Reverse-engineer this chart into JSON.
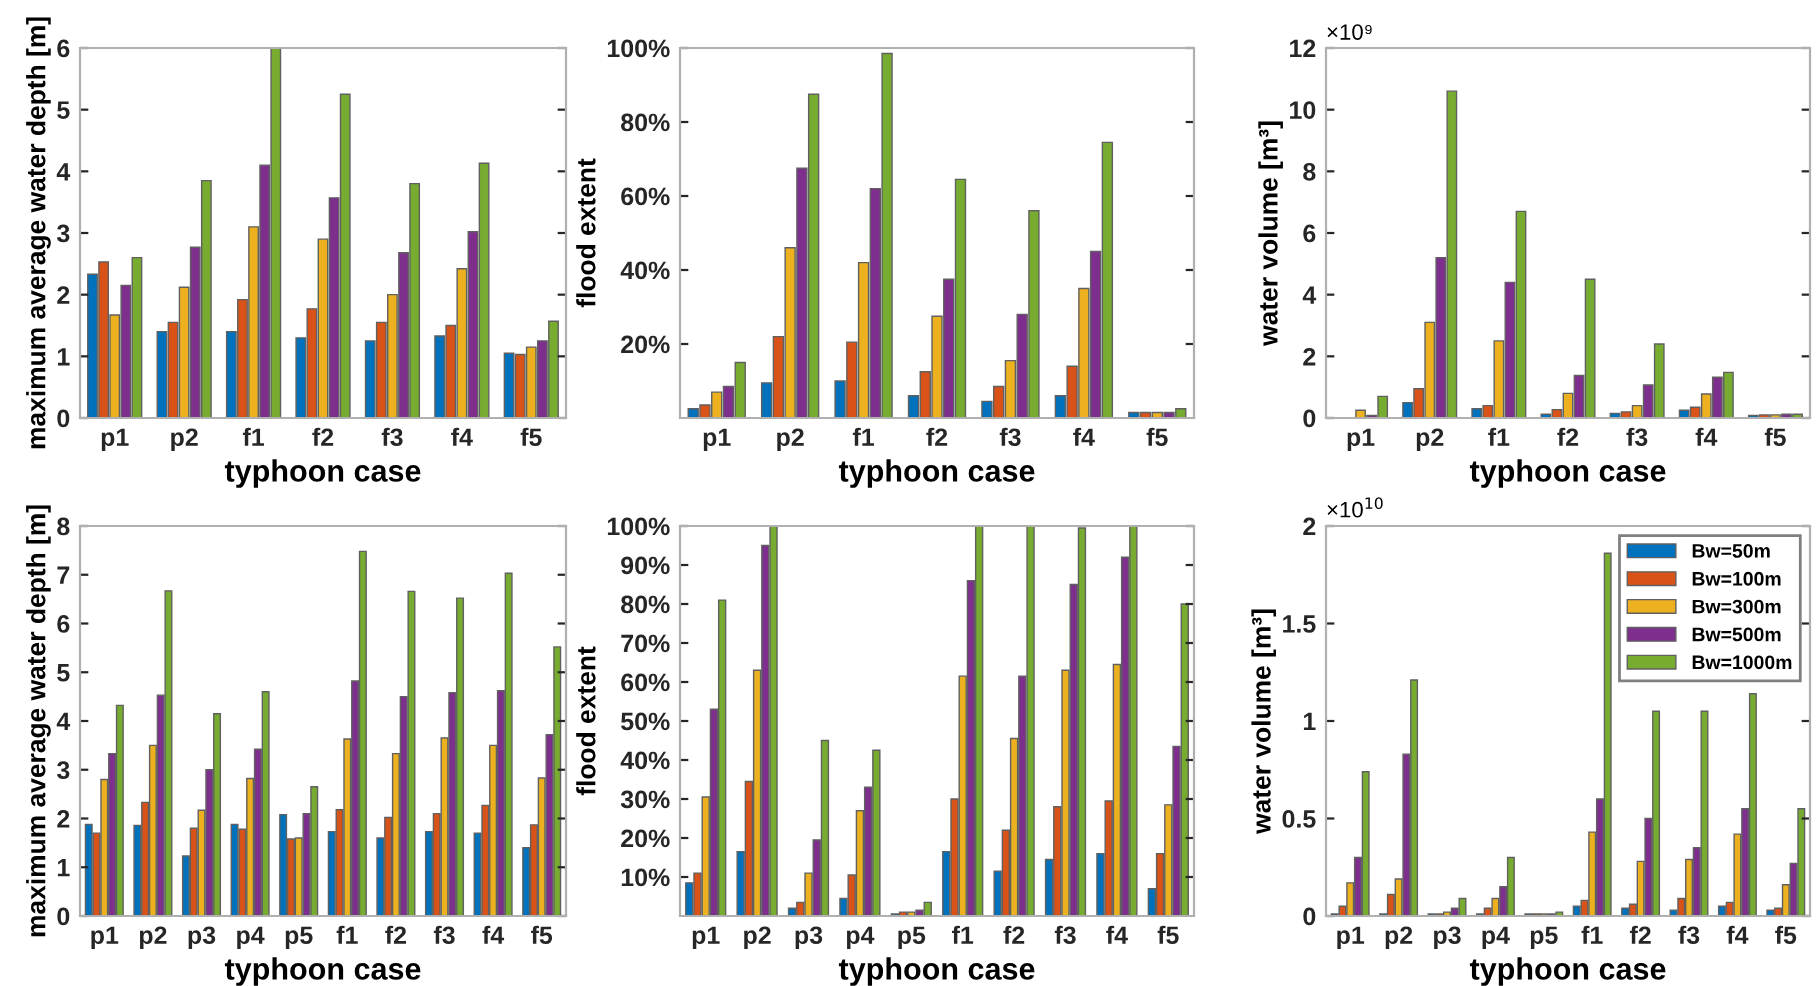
{
  "chart_data": [
    {
      "type": "bar",
      "xlabel": "typhoon case",
      "ylabel": "maximum average water depth [m]",
      "categories": [
        "p1",
        "p2",
        "f1",
        "f2",
        "f3",
        "f4",
        "f5"
      ],
      "ylim": [
        0,
        6
      ],
      "yticks": [
        0,
        1,
        2,
        3,
        4,
        5,
        6
      ],
      "grid": false,
      "legend": false,
      "series": [
        {
          "color": "#0072bd",
          "values": [
            2.33,
            1.4,
            1.4,
            1.3,
            1.25,
            1.33,
            1.05
          ]
        },
        {
          "color": "#d95319",
          "values": [
            2.53,
            1.55,
            1.92,
            1.77,
            1.55,
            1.5,
            1.03
          ]
        },
        {
          "color": "#edb120",
          "values": [
            1.67,
            2.12,
            3.1,
            2.9,
            2.0,
            2.42,
            1.15
          ]
        },
        {
          "color": "#7e2f8e",
          "values": [
            2.15,
            2.77,
            4.1,
            3.57,
            2.68,
            3.02,
            1.25
          ]
        },
        {
          "color": "#77ac30",
          "values": [
            2.6,
            3.85,
            6.0,
            5.25,
            3.8,
            4.13,
            1.57
          ]
        }
      ]
    },
    {
      "type": "bar",
      "xlabel": "typhoon case",
      "ylabel": "flood extent",
      "categories": [
        "p1",
        "p2",
        "f1",
        "f2",
        "f3",
        "f4",
        "f5"
      ],
      "ylim": [
        0,
        100
      ],
      "yticks": [
        {
          "value": 20,
          "label": "20%"
        },
        {
          "value": 40,
          "label": "40%"
        },
        {
          "value": 60,
          "label": "60%"
        },
        {
          "value": 80,
          "label": "80%"
        },
        {
          "value": 100,
          "label": "100%"
        }
      ],
      "grid": false,
      "legend": false,
      "series": [
        {
          "color": "#0072bd",
          "values": [
            2.5,
            9.5,
            10,
            6,
            4.5,
            6,
            1.5
          ]
        },
        {
          "color": "#d95319",
          "values": [
            3.5,
            22,
            20.5,
            12.5,
            8.5,
            14,
            1.5
          ]
        },
        {
          "color": "#edb120",
          "values": [
            7,
            46,
            42,
            27.5,
            15.5,
            35,
            1.5
          ]
        },
        {
          "color": "#7e2f8e",
          "values": [
            8.5,
            67.5,
            62,
            37.5,
            28,
            45,
            1.5
          ]
        },
        {
          "color": "#77ac30",
          "values": [
            15,
            87.5,
            98.5,
            64.5,
            56,
            74.5,
            2.5
          ]
        }
      ]
    },
    {
      "type": "bar",
      "xlabel": "typhoon case",
      "ylabel": "water volume [m³]",
      "annotations": [
        "×10⁹"
      ],
      "categories": [
        "p1",
        "p2",
        "f1",
        "f2",
        "f3",
        "f4",
        "f5"
      ],
      "ylim": [
        0,
        12
      ],
      "yticks": [
        0,
        2,
        4,
        6,
        8,
        10,
        12
      ],
      "grid": false,
      "legend": false,
      "series": [
        {
          "color": "#0072bd",
          "values": [
            null,
            0.5,
            0.3,
            0.12,
            0.15,
            0.25,
            0.08
          ]
        },
        {
          "color": "#d95319",
          "values": [
            null,
            0.95,
            0.4,
            0.27,
            0.2,
            0.35,
            0.1
          ]
        },
        {
          "color": "#edb120",
          "values": [
            0.25,
            3.1,
            2.5,
            0.8,
            0.4,
            0.78,
            0.1
          ]
        },
        {
          "color": "#7e2f8e",
          "values": [
            0.08,
            5.2,
            4.4,
            1.38,
            1.07,
            1.32,
            0.12
          ]
        },
        {
          "color": "#77ac30",
          "values": [
            0.7,
            10.6,
            6.7,
            4.5,
            2.4,
            1.48,
            0.12
          ]
        }
      ]
    },
    {
      "type": "bar",
      "xlabel": "typhoon case",
      "ylabel": "maximum average water depth [m]",
      "categories": [
        "p1",
        "p2",
        "p3",
        "p4",
        "p5",
        "f1",
        "f2",
        "f3",
        "f4",
        "f5"
      ],
      "ylim": [
        0,
        8
      ],
      "yticks": [
        0,
        1,
        2,
        3,
        4,
        5,
        6,
        7,
        8
      ],
      "grid": false,
      "legend": false,
      "series": [
        {
          "color": "#0072bd",
          "values": [
            1.88,
            1.86,
            1.23,
            1.88,
            2.08,
            1.73,
            1.6,
            1.73,
            1.7,
            1.4
          ]
        },
        {
          "color": "#d95319",
          "values": [
            1.7,
            2.33,
            1.8,
            1.78,
            1.58,
            2.18,
            2.02,
            2.1,
            2.27,
            1.87
          ]
        },
        {
          "color": "#edb120",
          "values": [
            2.8,
            3.5,
            2.17,
            2.82,
            1.6,
            3.63,
            3.33,
            3.65,
            3.5,
            2.83
          ]
        },
        {
          "color": "#7e2f8e",
          "values": [
            3.33,
            4.53,
            3.0,
            3.42,
            2.1,
            4.82,
            4.5,
            4.58,
            4.62,
            3.72
          ]
        },
        {
          "color": "#77ac30",
          "values": [
            4.32,
            6.67,
            4.15,
            4.6,
            2.65,
            7.48,
            6.66,
            6.52,
            7.03,
            5.52
          ]
        }
      ]
    },
    {
      "type": "bar",
      "xlabel": "typhoon case",
      "ylabel": "flood extent",
      "categories": [
        "p1",
        "p2",
        "p3",
        "p4",
        "p5",
        "f1",
        "f2",
        "f3",
        "f4",
        "f5"
      ],
      "ylim": [
        0,
        100
      ],
      "yticks": [
        {
          "value": 10,
          "label": "10%"
        },
        {
          "value": 20,
          "label": "20%"
        },
        {
          "value": 30,
          "label": "30%"
        },
        {
          "value": 40,
          "label": "40%"
        },
        {
          "value": 50,
          "label": "50%"
        },
        {
          "value": 60,
          "label": "60%"
        },
        {
          "value": 70,
          "label": "70%"
        },
        {
          "value": 80,
          "label": "80%"
        },
        {
          "value": 90,
          "label": "90%"
        },
        {
          "value": 100,
          "label": "100%"
        }
      ],
      "grid": false,
      "legend": false,
      "series": [
        {
          "color": "#0072bd",
          "values": [
            8.5,
            16.5,
            2,
            4.5,
            0.5,
            16.5,
            11.5,
            14.5,
            16,
            7
          ]
        },
        {
          "color": "#d95319",
          "values": [
            11,
            34.5,
            3.5,
            10.5,
            1,
            30,
            22,
            28,
            29.5,
            16
          ]
        },
        {
          "color": "#edb120",
          "values": [
            30.5,
            63,
            11,
            27,
            1,
            61.5,
            45.5,
            63,
            64.5,
            28.5
          ]
        },
        {
          "color": "#7e2f8e",
          "values": [
            53,
            95,
            19.5,
            33,
            1.5,
            86,
            61.5,
            85,
            92,
            43.5
          ]
        },
        {
          "color": "#77ac30",
          "values": [
            81,
            100,
            45,
            42.5,
            3.5,
            100,
            100,
            99.5,
            100,
            80
          ]
        }
      ]
    },
    {
      "type": "bar",
      "xlabel": "typhoon case",
      "ylabel": "water volume [m³]",
      "annotations": [
        "×10$^{10}$"
      ],
      "categories": [
        "p1",
        "p2",
        "p3",
        "p4",
        "p5",
        "f1",
        "f2",
        "f3",
        "f4",
        "f5"
      ],
      "ylim": [
        0,
        2
      ],
      "yticks": [
        0,
        0.5,
        1,
        1.5,
        2
      ],
      "grid": false,
      "legend": "top right",
      "series": [
        {
          "name": "Bw=50m",
          "color": "#0072bd",
          "values": [
            0.01,
            0.01,
            0.01,
            0.01,
            0.01,
            0.05,
            0.04,
            0.03,
            0.05,
            0.03
          ]
        },
        {
          "name": "Bw=100m",
          "color": "#d95319",
          "values": [
            0.05,
            0.11,
            0.01,
            0.04,
            0.01,
            0.08,
            0.06,
            0.09,
            0.07,
            0.04
          ]
        },
        {
          "name": "Bw=300m",
          "color": "#edb120",
          "values": [
            0.17,
            0.19,
            0.02,
            0.09,
            0.01,
            0.43,
            0.28,
            0.29,
            0.42,
            0.16
          ]
        },
        {
          "name": "Bw=500m",
          "color": "#7e2f8e",
          "values": [
            0.3,
            0.83,
            0.04,
            0.15,
            0.01,
            0.6,
            0.5,
            0.35,
            0.55,
            0.27
          ]
        },
        {
          "name": "Bw=1000m",
          "color": "#77ac30",
          "values": [
            0.74,
            1.21,
            0.09,
            0.3,
            0.02,
            1.86,
            1.05,
            1.05,
            1.14,
            0.55
          ]
        }
      ]
    }
  ]
}
